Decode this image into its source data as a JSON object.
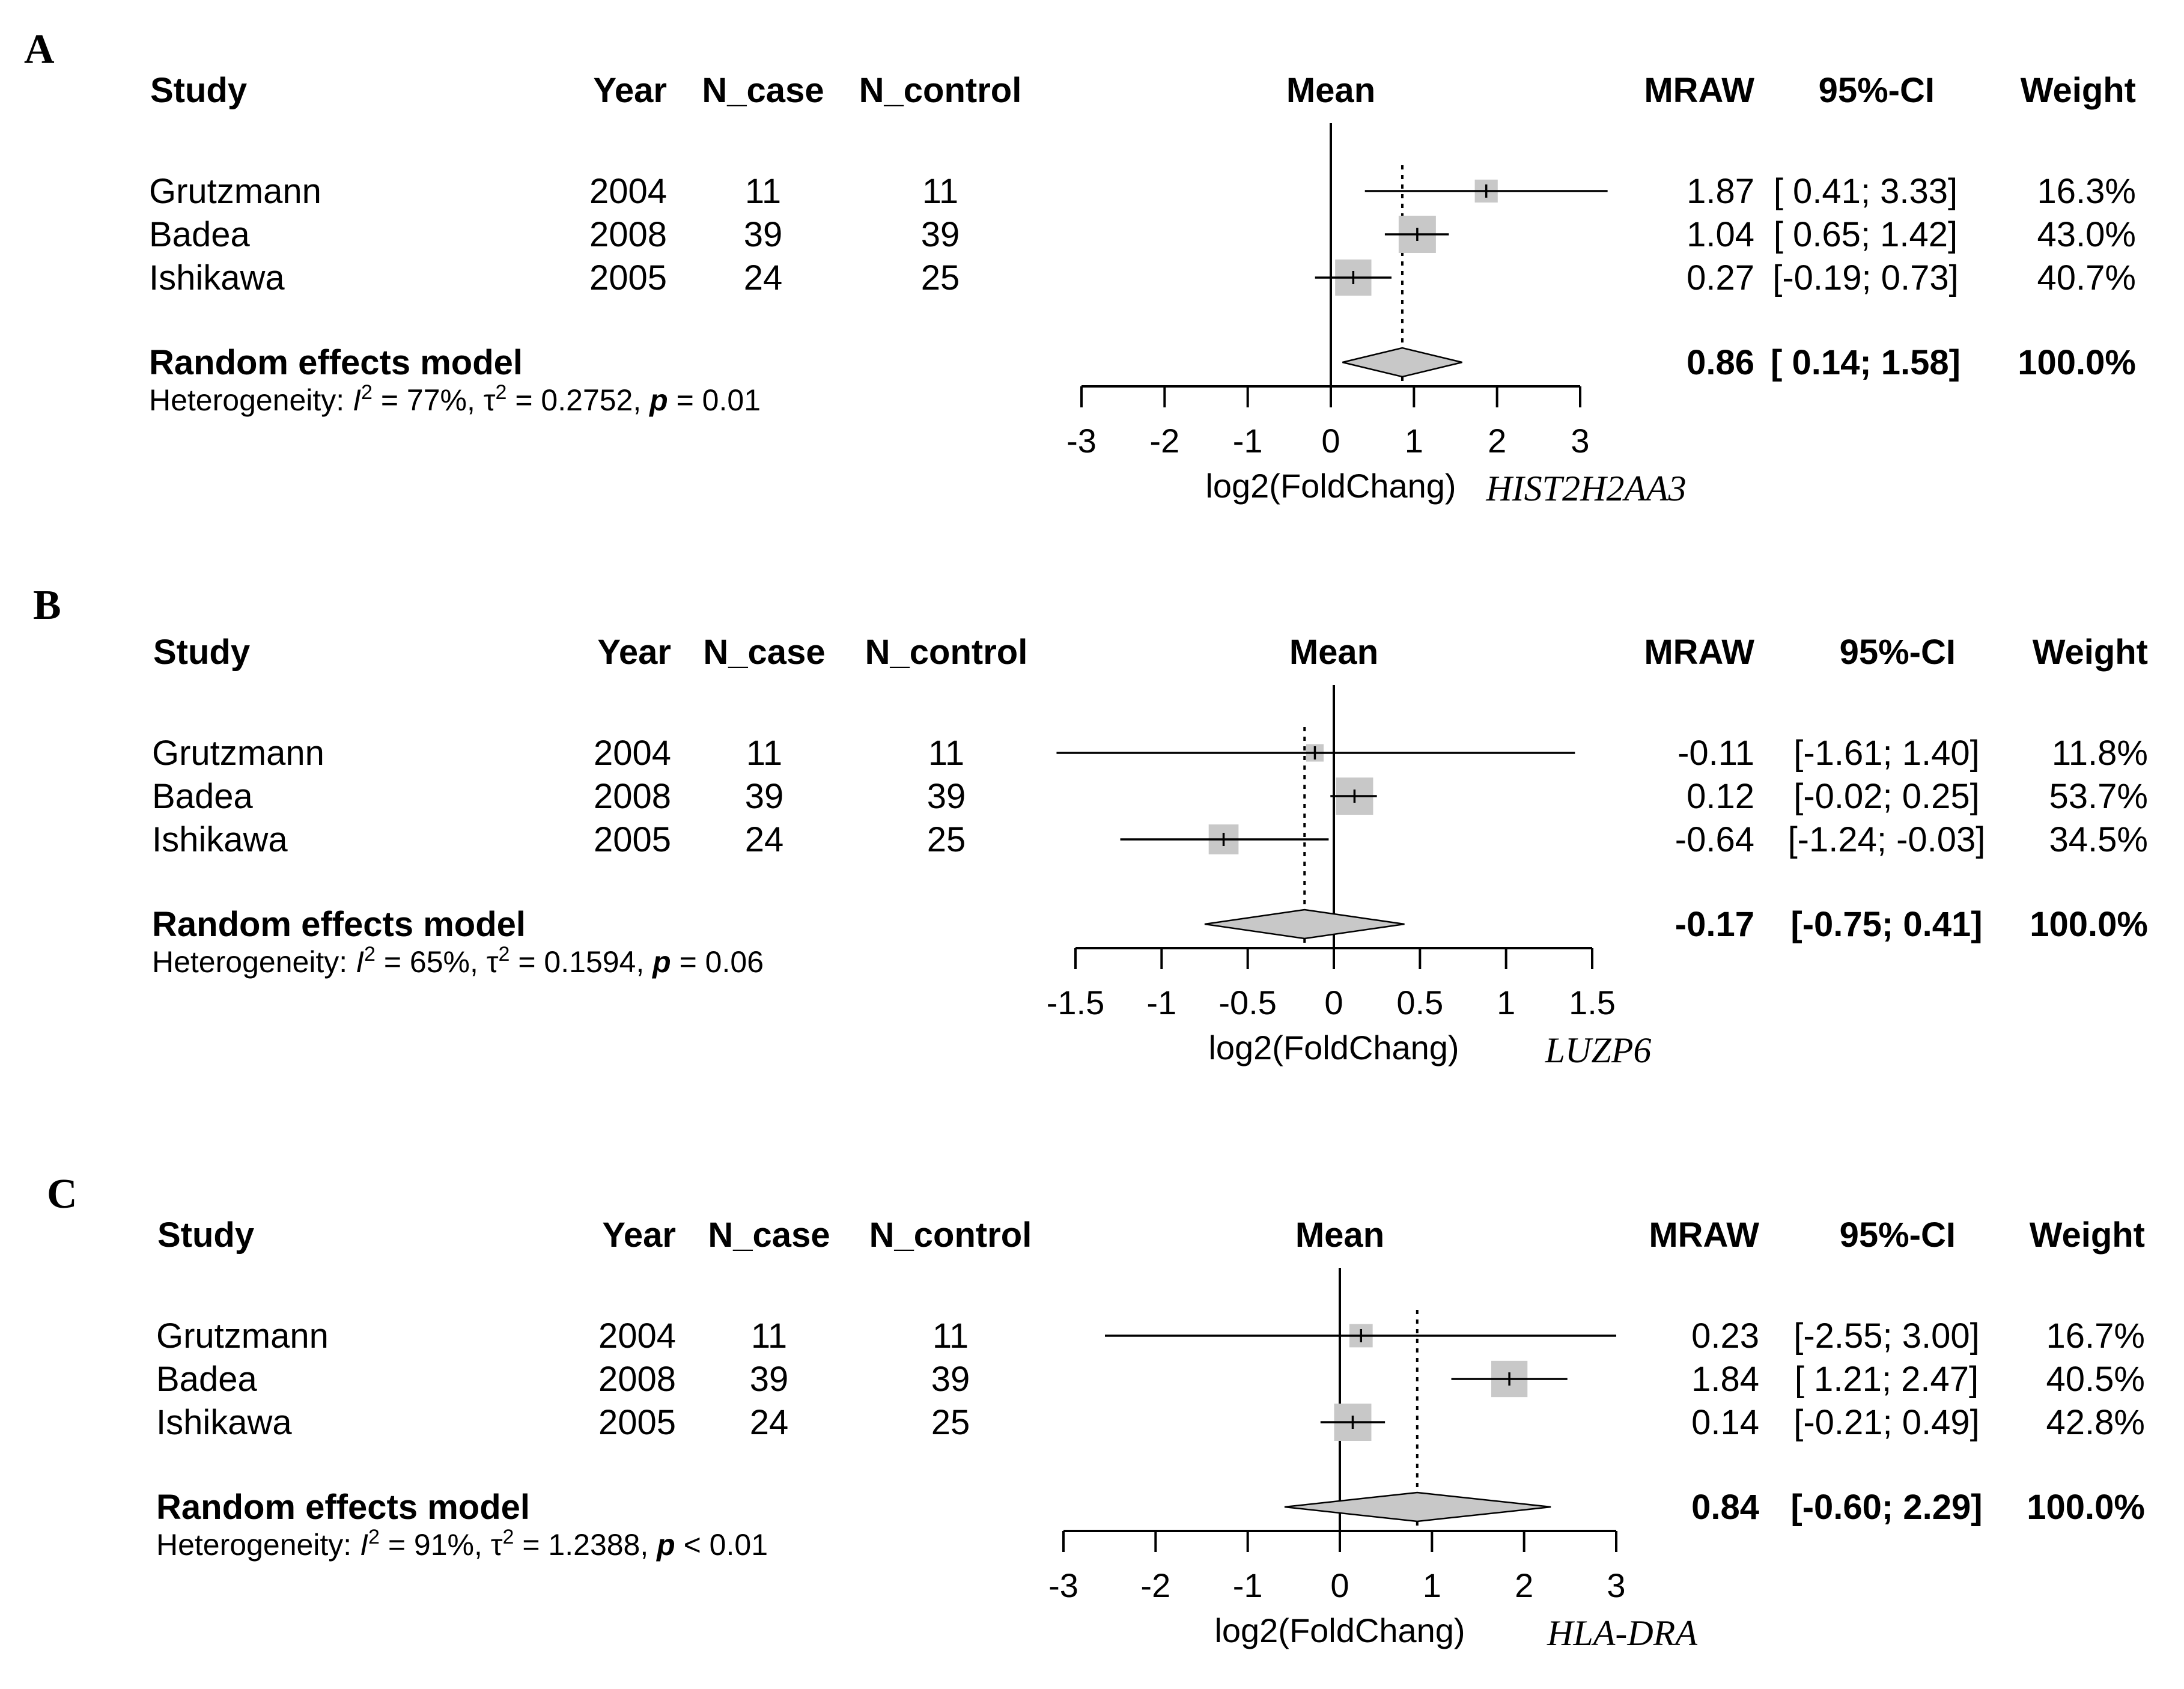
{
  "figure": {
    "columns": {
      "study": "Study",
      "year": "Year",
      "n_case": "N_case",
      "n_control": "N_control",
      "mean": "Mean",
      "mraw": "MRAW",
      "ci": "95%-CI",
      "weight": "Weight"
    },
    "x_axis_label": "log2(FoldChang)"
  },
  "chart_data": [
    {
      "type": "forest",
      "panel": "A",
      "gene": "HIST2H2AA3",
      "xlim": [
        -3,
        3
      ],
      "ticks": [
        "-3",
        "-2",
        "-1",
        "0",
        "1",
        "2",
        "3"
      ],
      "tick_values": [
        -3,
        -2,
        -1,
        0,
        1,
        2,
        3
      ],
      "studies": [
        {
          "study": "Grutzmann",
          "year": "2004",
          "n_case": "11",
          "n_control": "11",
          "mraw_text": "1.87",
          "ci_text": "[ 0.41; 3.33]",
          "weight_text": "16.3%",
          "mean": 1.87,
          "lower": 0.41,
          "upper": 3.33,
          "weight": 16.3
        },
        {
          "study": "Badea",
          "year": "2008",
          "n_case": "39",
          "n_control": "39",
          "mraw_text": "1.04",
          "ci_text": "[ 0.65; 1.42]",
          "weight_text": "43.0%",
          "mean": 1.04,
          "lower": 0.65,
          "upper": 1.42,
          "weight": 43.0
        },
        {
          "study": "Ishikawa",
          "year": "2005",
          "n_case": "24",
          "n_control": "25",
          "mraw_text": "0.27",
          "ci_text": "[-0.19; 0.73]",
          "weight_text": "40.7%",
          "mean": 0.27,
          "lower": -0.19,
          "upper": 0.73,
          "weight": 40.7
        }
      ],
      "random": {
        "label": "Random effects model",
        "mraw_text": "0.86",
        "ci_text": "[ 0.14; 1.58]",
        "weight_text": "100.0%",
        "mean": 0.86,
        "lower": 0.14,
        "upper": 1.58
      },
      "heterogeneity": {
        "prefix": "Heterogeneity: ",
        "i2_value": " = 77%, ",
        "tau2_value": " = 0.2752, ",
        "p_value": " = 0.01"
      }
    },
    {
      "type": "forest",
      "panel": "B",
      "gene": "LUZP6",
      "xlim": [
        -1.5,
        1.5
      ],
      "ticks": [
        "-1.5",
        "-1",
        "-0.5",
        "0",
        "0.5",
        "1",
        "1.5"
      ],
      "tick_values": [
        -1.5,
        -1,
        -0.5,
        0,
        0.5,
        1,
        1.5
      ],
      "studies": [
        {
          "study": "Grutzmann",
          "year": "2004",
          "n_case": "11",
          "n_control": "11",
          "mraw_text": "-0.11",
          "ci_text": "[-1.61;  1.40]",
          "weight_text": "11.8%",
          "mean": -0.11,
          "lower": -1.61,
          "upper": 1.4,
          "weight": 11.8
        },
        {
          "study": "Badea",
          "year": "2008",
          "n_case": "39",
          "n_control": "39",
          "mraw_text": "0.12",
          "ci_text": "[-0.02;  0.25]",
          "weight_text": "53.7%",
          "mean": 0.12,
          "lower": -0.02,
          "upper": 0.25,
          "weight": 53.7
        },
        {
          "study": "Ishikawa",
          "year": "2005",
          "n_case": "24",
          "n_control": "25",
          "mraw_text": "-0.64",
          "ci_text": "[-1.24; -0.03]",
          "weight_text": "34.5%",
          "mean": -0.64,
          "lower": -1.24,
          "upper": -0.03,
          "weight": 34.5
        }
      ],
      "random": {
        "label": "Random effects model",
        "mraw_text": "-0.17",
        "ci_text": "[-0.75;  0.41]",
        "weight_text": "100.0%",
        "mean": -0.17,
        "lower": -0.75,
        "upper": 0.41
      },
      "heterogeneity": {
        "prefix": "Heterogeneity: ",
        "i2_value": " = 65%, ",
        "tau2_value": " = 0.1594, ",
        "p_value": " = 0.06"
      }
    },
    {
      "type": "forest",
      "panel": "C",
      "gene": "HLA-DRA",
      "xlim": [
        -3,
        3
      ],
      "ticks": [
        "-3",
        "-2",
        "-1",
        "0",
        "1",
        "2",
        "3"
      ],
      "tick_values": [
        -3,
        -2,
        -1,
        0,
        1,
        2,
        3
      ],
      "studies": [
        {
          "study": "Grutzmann",
          "year": "2004",
          "n_case": "11",
          "n_control": "11",
          "mraw_text": "0.23",
          "ci_text": "[-2.55; 3.00]",
          "weight_text": "16.7%",
          "mean": 0.23,
          "lower": -2.55,
          "upper": 3.0,
          "weight": 16.7
        },
        {
          "study": "Badea",
          "year": "2008",
          "n_case": "39",
          "n_control": "39",
          "mraw_text": "1.84",
          "ci_text": "[ 1.21; 2.47]",
          "weight_text": "40.5%",
          "mean": 1.84,
          "lower": 1.21,
          "upper": 2.47,
          "weight": 40.5
        },
        {
          "study": "Ishikawa",
          "year": "2005",
          "n_case": "24",
          "n_control": "25",
          "mraw_text": "0.14",
          "ci_text": "[-0.21; 0.49]",
          "weight_text": "42.8%",
          "mean": 0.14,
          "lower": -0.21,
          "upper": 0.49,
          "weight": 42.8
        }
      ],
      "random": {
        "label": "Random effects model",
        "mraw_text": "0.84",
        "ci_text": "[-0.60; 2.29]",
        "weight_text": "100.0%",
        "mean": 0.84,
        "lower": -0.6,
        "upper": 2.29
      },
      "heterogeneity": {
        "prefix": "Heterogeneity: ",
        "i2_value": " = 91%, ",
        "tau2_value": " = 1.2388, ",
        "p_value": " < 0.01"
      }
    }
  ]
}
